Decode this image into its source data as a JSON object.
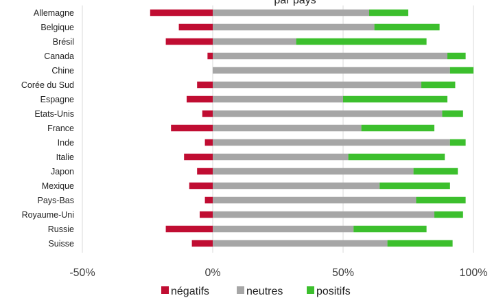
{
  "chart_data": {
    "type": "bar",
    "orientation": "horizontal",
    "stacked": true,
    "title": "par pays",
    "categories": [
      "Allemagne",
      "Belgique",
      "Brésil",
      "Canada",
      "Chine",
      "Corée du Sud",
      "Espagne",
      "Etats-Unis",
      "France",
      "Inde",
      "Italie",
      "Japon",
      "Mexique",
      "Pays-Bas",
      "Royaume-Uni",
      "Russie",
      "Suisse"
    ],
    "series": [
      {
        "name": "négatifs",
        "color": "#c00d32",
        "values": [
          -24,
          -13,
          -18,
          -2,
          0,
          -6,
          -10,
          -4,
          -16,
          -3,
          -11,
          -6,
          -9,
          -3,
          -5,
          -18,
          -8
        ]
      },
      {
        "name": "neutres",
        "color": "#a6a6a6",
        "values": [
          60,
          62,
          32,
          90,
          91,
          80,
          50,
          88,
          57,
          91,
          52,
          77,
          64,
          78,
          85,
          54,
          67
        ]
      },
      {
        "name": "positifs",
        "color": "#3cbf2d",
        "values": [
          15,
          25,
          50,
          7,
          9,
          13,
          40,
          8,
          28,
          6,
          37,
          17,
          27,
          19,
          11,
          28,
          25
        ]
      }
    ],
    "xlim": [
      -50,
      100
    ],
    "xticks": [
      "-50%",
      "0%",
      "50%",
      "100%"
    ],
    "grid": true,
    "legend": "bottom"
  }
}
